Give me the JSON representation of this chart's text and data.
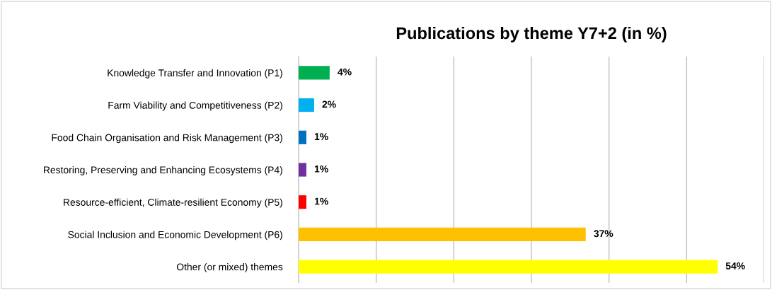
{
  "chart_data": {
    "type": "bar",
    "orientation": "horizontal",
    "title": "Publications by theme Y7+2 (in %)",
    "categories": [
      "Knowledge Transfer and Innovation (P1)",
      "Farm Viability and Competitiveness (P2)",
      "Food Chain Organisation and Risk Management (P3)",
      "Restoring, Preserving and Enhancing Ecosystems (P4)",
      "Resource-efficient, Climate-resilient Economy (P5)",
      "Social Inclusion and Economic Development (P6)",
      "Other (or mixed) themes"
    ],
    "values": [
      4,
      2,
      1,
      1,
      1,
      37,
      54
    ],
    "value_labels": [
      "4%",
      "2%",
      "1%",
      "1%",
      "1%",
      "37%",
      "54%"
    ],
    "colors": [
      "#00b050",
      "#00b0f0",
      "#0070c0",
      "#7030a0",
      "#ff0000",
      "#ffc000",
      "#ffff00"
    ],
    "xlim": [
      0,
      60
    ],
    "xticks": [
      {
        "value": 0,
        "label": null
      },
      {
        "value": 10,
        "label": null
      },
      {
        "value": 20,
        "label": null
      },
      {
        "value": 30,
        "label": null
      },
      {
        "value": 40,
        "label": null
      },
      {
        "value": 50,
        "label": null
      },
      {
        "value": 60,
        "label": null
      }
    ],
    "tick_labels": "y",
    "grid": "x",
    "legend": false
  }
}
